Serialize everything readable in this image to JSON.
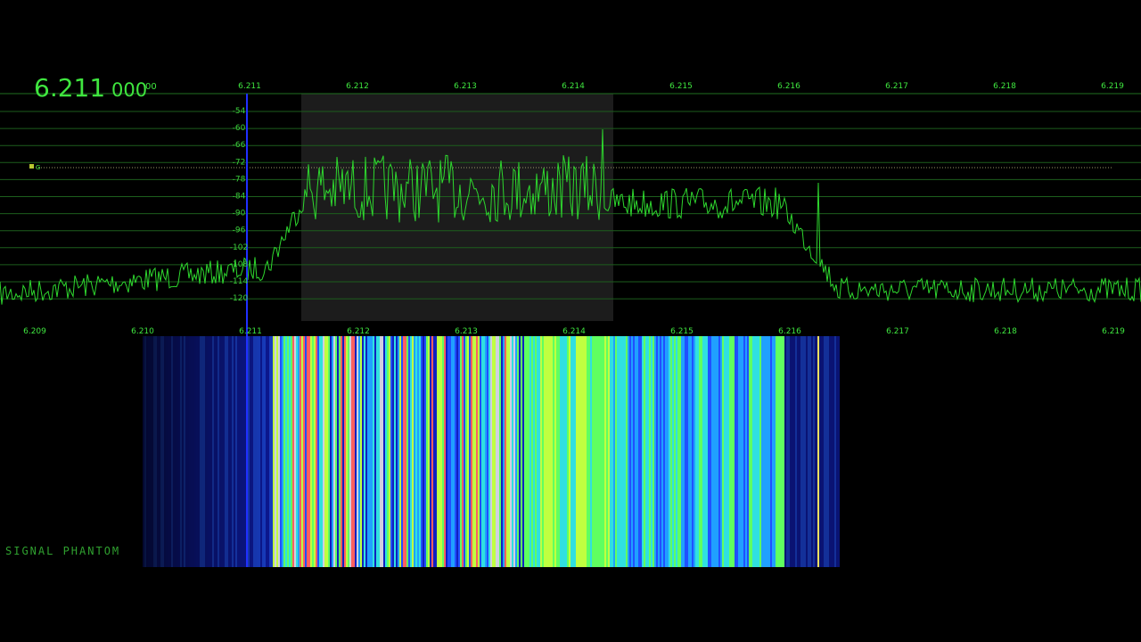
{
  "readout": {
    "main": "6.211",
    "sub": "000",
    "small": "00"
  },
  "top_scale": [
    "6.211",
    "6.212",
    "6.213",
    "6.214",
    "6.215",
    "6.216",
    "6.217",
    "6.218",
    "6.219"
  ],
  "level_scale": [
    "-54",
    "-60",
    "-66",
    "-72",
    "-78",
    "-84",
    "-90",
    "-96",
    "-102",
    "-108",
    "-114",
    "-120"
  ],
  "bottom_scale": [
    "6.209",
    "6.210",
    "6.211",
    "6.212",
    "6.213",
    "6.214",
    "6.215",
    "6.216",
    "6.217",
    "6.218",
    "6.219"
  ],
  "marker": "G",
  "watermark": "SIGNAL PHANTOM"
}
